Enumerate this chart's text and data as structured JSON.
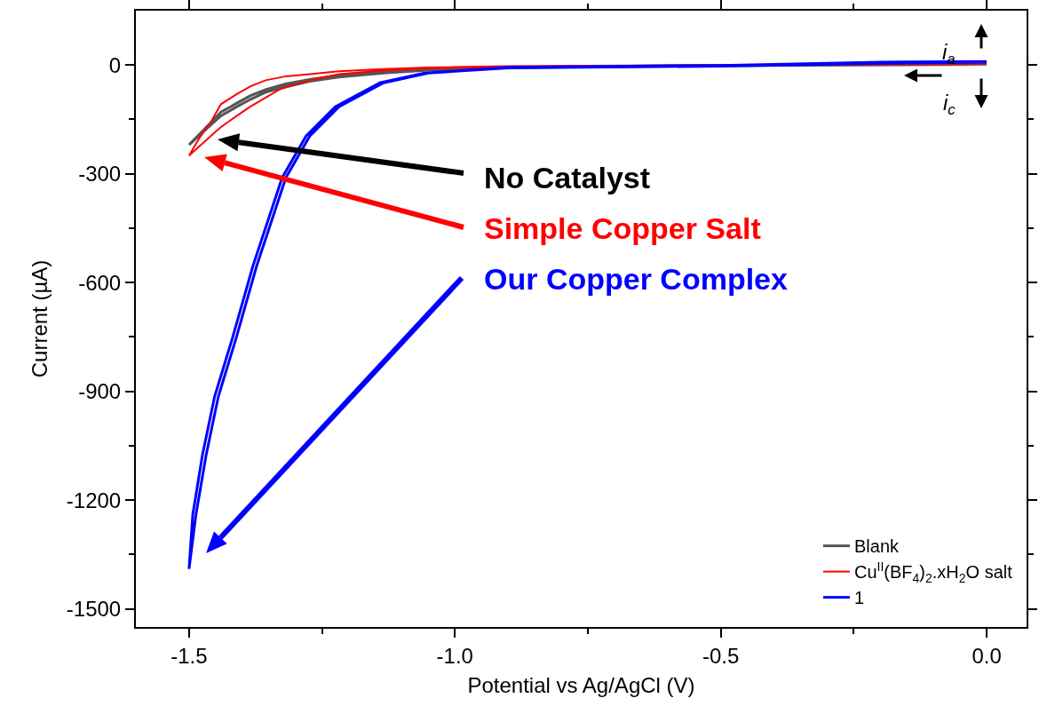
{
  "chart_data": {
    "type": "line",
    "xlabel": "Potential vs Ag/AgCl (V)",
    "ylabel": "Current (µA)",
    "xlim": [
      -1.6,
      0.075
    ],
    "xticks": [
      {
        "value": -1.5,
        "label": "-1.5"
      },
      {
        "value": -1.0,
        "label": "-1.0"
      },
      {
        "value": -0.5,
        "label": "-0.5"
      },
      {
        "value": 0,
        "label": "0.0"
      }
    ],
    "ylim": [
      -1550,
      150
    ],
    "yticks": [
      -1500,
      -1200,
      -900,
      -600,
      -300,
      0
    ],
    "grid": false,
    "legend": "bottom right",
    "marker": "none",
    "line_style": "solid",
    "series": [
      {
        "name": "Blank",
        "color": "#555555",
        "x": [
          0,
          -0.5,
          -0.9,
          -1.05,
          -1.134,
          -1.218,
          -1.273,
          -1.318,
          -1.356,
          -1.385,
          -1.41,
          -1.44,
          -1.47,
          -1.5,
          -1.47,
          -1.44,
          -1.41,
          -1.385,
          -1.356,
          -1.318,
          -1.273,
          -1.218,
          -1.134,
          -1.05,
          -0.9,
          -0.5,
          0
        ],
        "values": [
          2,
          -2,
          -7,
          -14,
          -22,
          -33,
          -45,
          -60,
          -75,
          -95,
          -115,
          -140,
          -180,
          -220,
          -175,
          -130,
          -105,
          -85,
          -68,
          -52,
          -40,
          -28,
          -18,
          -12,
          -6,
          -1,
          3
        ]
      },
      {
        "name": "Cu$^{II}$(BF$_{4}$)$_{2}$.xH$_{2}$O salt",
        "color": "#ff0000",
        "x": [
          0,
          -0.5,
          -0.9,
          -1.05,
          -1.134,
          -1.218,
          -1.273,
          -1.328,
          -1.385,
          -1.41,
          -1.44,
          -1.47,
          -1.5,
          -1.48,
          -1.46,
          -1.44,
          -1.41,
          -1.385,
          -1.356,
          -1.318,
          -1.273,
          -1.218,
          -1.134,
          -1.05,
          -0.9,
          -0.5,
          0
        ],
        "values": [
          5,
          -1,
          -5,
          -9,
          -15,
          -25,
          -42,
          -66,
          -115,
          -140,
          -171,
          -210,
          -250,
          -200,
          -160,
          -108,
          -80,
          -59,
          -42,
          -31,
          -25,
          -17,
          -11,
          -7,
          -3,
          0,
          3
        ]
      },
      {
        "name": "1",
        "color": "#0000ff",
        "x": [
          0,
          -0.2,
          -0.5,
          -0.9,
          -1.05,
          -1.134,
          -1.218,
          -1.273,
          -1.318,
          -1.373,
          -1.411,
          -1.445,
          -1.468,
          -1.487,
          -1.5,
          -1.493,
          -1.475,
          -1.452,
          -1.418,
          -1.38,
          -1.325,
          -1.28,
          -1.225,
          -1.141,
          -1.057,
          -0.9,
          -0.5,
          -0.2,
          0
        ],
        "values": [
          8,
          5,
          -3,
          -8,
          -22,
          -49,
          -115,
          -196,
          -311,
          -555,
          -751,
          -915,
          -1077,
          -1240,
          -1390,
          -1240,
          -1077,
          -915,
          -751,
          -555,
          -311,
          -196,
          -115,
          -49,
          -22,
          -6,
          -1,
          8,
          10
        ]
      }
    ],
    "annotations": [
      "No Catalyst",
      "Simple Copper Salt",
      "Our Copper Complex",
      "i$_{a}$",
      "i$_{c}$"
    ]
  }
}
